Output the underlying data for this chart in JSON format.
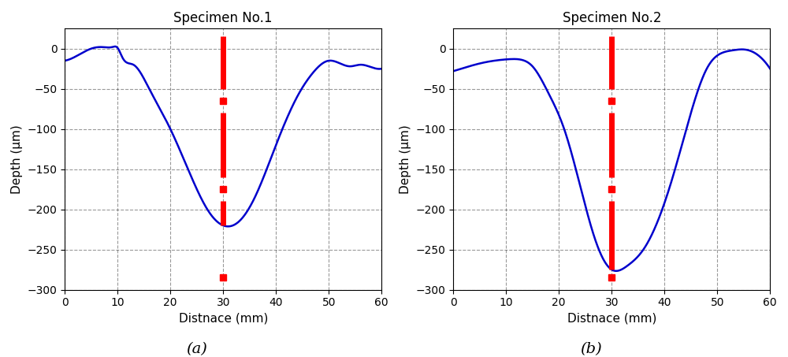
{
  "title1": "Specimen No.1",
  "title2": "Specimen No.2",
  "xlabel": "Distnace (mm)",
  "ylabel": "Depth (μm)",
  "xlim": [
    0,
    60
  ],
  "ylim": [
    -300,
    25
  ],
  "yticks": [
    0,
    -50,
    -100,
    -150,
    -200,
    -250,
    -300
  ],
  "xticks": [
    0,
    10,
    20,
    30,
    40,
    50,
    60
  ],
  "line_color": "#0000CC",
  "red_color": "#FF0000",
  "vline_x": 30,
  "caption_a": "(a)",
  "caption_b": "(b)",
  "sp1_knots_x": [
    0,
    2,
    5,
    7,
    9,
    10,
    11,
    13,
    16,
    20,
    24,
    27,
    30,
    33,
    36,
    40,
    44,
    47,
    50,
    52,
    54,
    56,
    58,
    60
  ],
  "sp1_knots_y": [
    -15,
    -10,
    0,
    2,
    2,
    1,
    -12,
    -20,
    -50,
    -100,
    -160,
    -200,
    -220,
    -215,
    -185,
    -120,
    -60,
    -30,
    -15,
    -18,
    -22,
    -20,
    -23,
    -25
  ],
  "sp2_knots_x": [
    0,
    3,
    6,
    9,
    11,
    13,
    15,
    18,
    21,
    24,
    27,
    30,
    33,
    36,
    39,
    42,
    45,
    48,
    51,
    53,
    55,
    57,
    60
  ],
  "sp2_knots_y": [
    -28,
    -22,
    -17,
    -14,
    -13,
    -14,
    -22,
    -55,
    -100,
    -170,
    -240,
    -275,
    -270,
    -250,
    -210,
    -150,
    -80,
    -25,
    -5,
    -2,
    -1,
    -5,
    -25
  ],
  "sp1_depth_marker": -220,
  "sp2_depth_marker": -275,
  "sp1_dot_y": -175,
  "sp2_dot_y": -180
}
